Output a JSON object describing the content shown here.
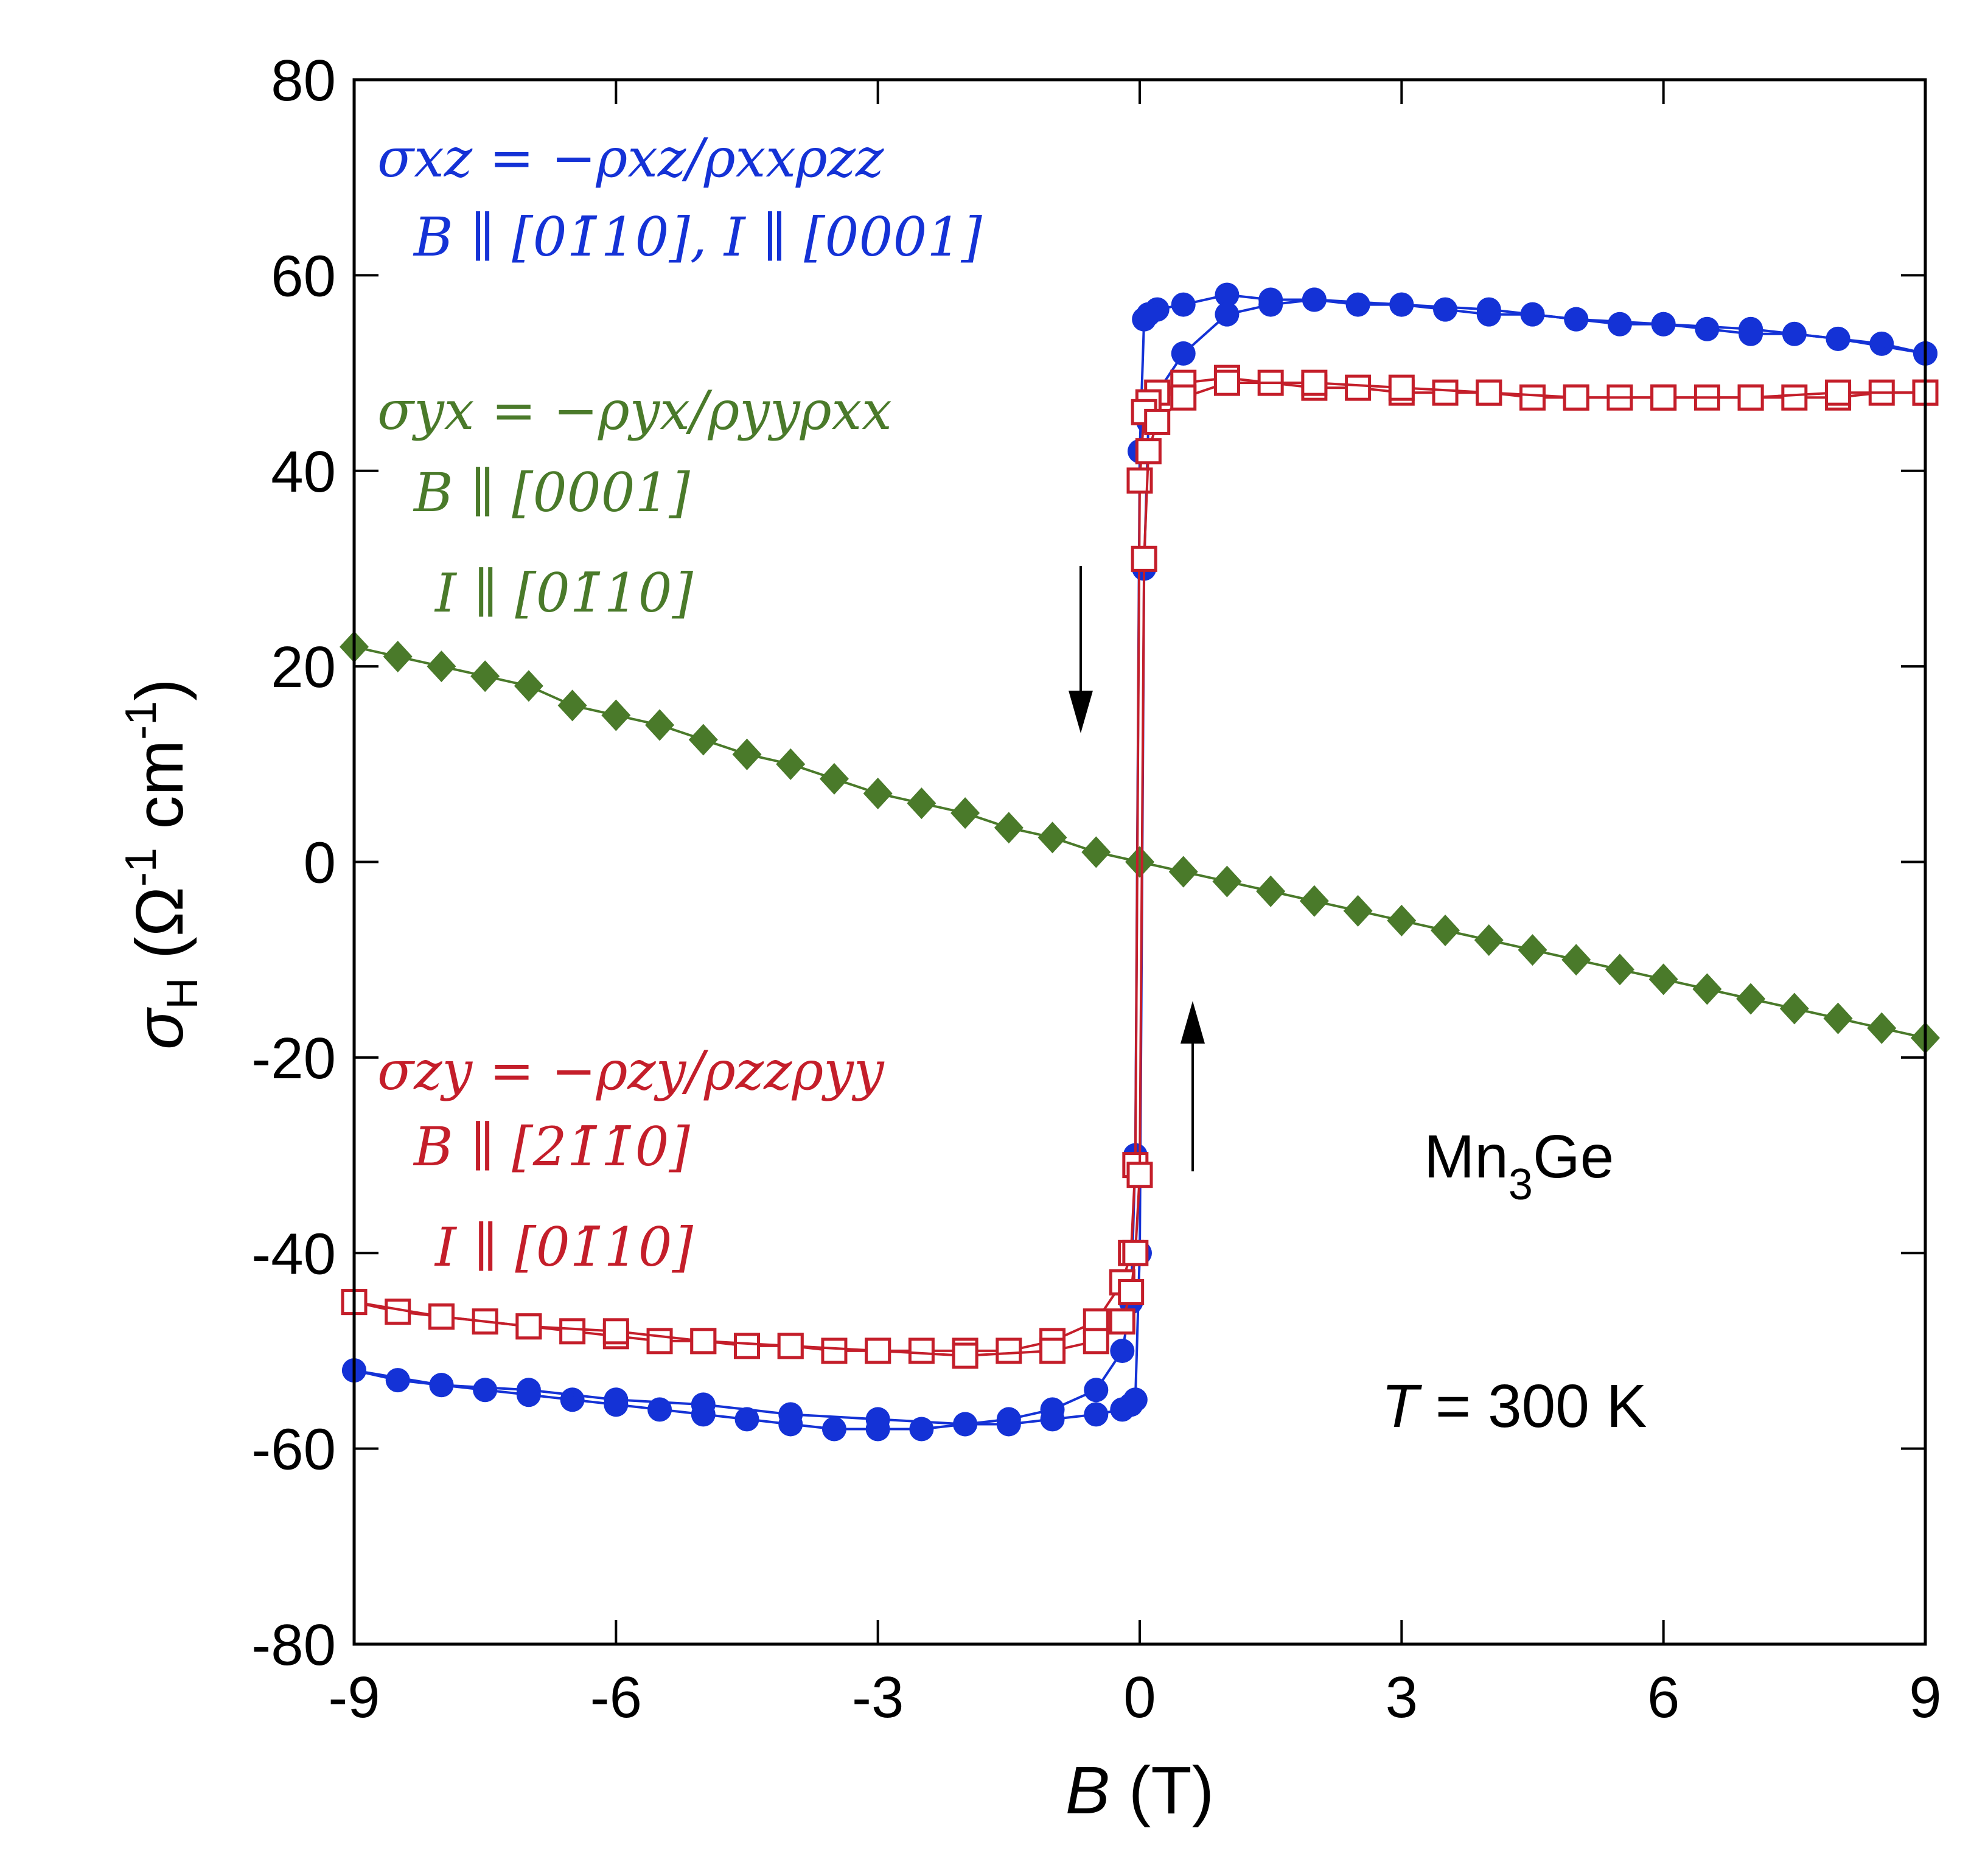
{
  "colors": {
    "blue": "#1432d6",
    "red": "#c41e2a",
    "green": "#4a7a2a",
    "axis": "#000000"
  },
  "chart_data": {
    "type": "scatter",
    "xlabel": "B (T)",
    "ylabel": "σH (Ω-1 cm-1)",
    "xlim": [
      -9,
      9
    ],
    "ylim": [
      -80,
      80
    ],
    "x_ticks": [
      -9,
      -6,
      -3,
      0,
      3,
      6,
      9
    ],
    "y_ticks": [
      -80,
      -60,
      -40,
      -20,
      0,
      20,
      40,
      60,
      80
    ],
    "grid": false,
    "series": [
      {
        "name": "σxz = −ρxz/ρxxρzz  B ∥ [01̄10], I ∥ [0001]",
        "marker": "filled-circle",
        "color": "blue",
        "sweep_down_x": [
          9,
          8.5,
          8,
          7.5,
          7,
          6.5,
          6,
          5.5,
          5,
          4.5,
          4,
          3.5,
          3,
          2.5,
          2,
          1.5,
          1,
          0.5,
          0.2,
          0.1,
          0.05,
          0,
          -0.05,
          -0.1,
          -0.2,
          -0.5,
          -1,
          -1.5,
          -2,
          -2.5,
          -3,
          -3.5,
          -4,
          -4.5,
          -5,
          -5.5,
          -6,
          -6.5,
          -7,
          -7.5,
          -8,
          -8.5,
          -9
        ],
        "sweep_down_y": [
          52,
          53,
          53.5,
          54,
          54,
          54.5,
          55,
          55,
          55.5,
          56,
          56,
          56.5,
          57,
          57,
          57.5,
          57.5,
          58,
          57,
          56.5,
          56,
          55.5,
          42,
          -30,
          -45,
          -50,
          -54,
          -56,
          -57,
          -57.5,
          -58,
          -58,
          -58,
          -57.5,
          -57,
          -56.5,
          -56,
          -55.5,
          -55,
          -54.5,
          -54,
          -53.5,
          -53,
          -52
        ],
        "sweep_up_x": [
          -9,
          -8,
          -7,
          -6,
          -5,
          -4,
          -3,
          -2,
          -1.5,
          -1,
          -0.5,
          -0.2,
          -0.1,
          -0.05,
          0,
          0.05,
          0.1,
          0.2,
          0.5,
          1,
          1.5,
          2,
          3,
          4,
          5,
          6,
          7,
          8,
          9
        ],
        "sweep_up_y": [
          -52,
          -53.5,
          -54,
          -55,
          -55.5,
          -56.5,
          -57,
          -57.5,
          -57.5,
          -57,
          -56.5,
          -56,
          -55.5,
          -55,
          -40,
          30,
          45,
          48,
          52,
          56,
          57,
          57.5,
          57,
          56.5,
          55.5,
          55,
          54.5,
          53.5,
          52
        ]
      },
      {
        "name": "σyx = −ρyx/ρyyρxx  B ∥ [0001]  I ∥ [01̄10]",
        "marker": "filled-diamond",
        "color": "green",
        "x": [
          -9,
          -8.5,
          -8,
          -7.5,
          -7,
          -6.5,
          -6,
          -5.5,
          -5,
          -4.5,
          -4,
          -3.5,
          -3,
          -2.5,
          -2,
          -1.5,
          -1,
          -0.5,
          0,
          0.5,
          1,
          1.5,
          2,
          2.5,
          3,
          3.5,
          4,
          4.5,
          5,
          5.5,
          6,
          6.5,
          7,
          7.5,
          8,
          8.5,
          9
        ],
        "y": [
          22,
          21,
          20,
          19,
          18,
          16,
          15,
          14,
          12.5,
          11,
          10,
          8.5,
          7,
          6,
          5,
          3.5,
          2.5,
          1,
          0,
          -1,
          -2,
          -3,
          -4,
          -5,
          -6,
          -7,
          -8,
          -9,
          -10,
          -11,
          -12,
          -13,
          -14,
          -15,
          -16,
          -17,
          -18
        ]
      },
      {
        "name": "σzy = −ρzy/ρzzρyy  B ∥ [21̄1̄0]  I ∥ [01̄10]",
        "marker": "open-square",
        "color": "red",
        "sweep_down_x": [
          9,
          8.5,
          8,
          7.5,
          7,
          6.5,
          6,
          5.5,
          5,
          4.5,
          4,
          3.5,
          3,
          2.5,
          2,
          1.5,
          1,
          0.5,
          0.2,
          0.1,
          0.05,
          0,
          -0.05,
          -0.1,
          -0.2,
          -0.5,
          -1,
          -1.5,
          -2,
          -2.5,
          -3,
          -3.5,
          -4,
          -4.5,
          -5,
          -5.5,
          -6,
          -6.5,
          -7,
          -7.5,
          -8,
          -8.5,
          -9
        ],
        "sweep_down_y": [
          48,
          48,
          47.5,
          47.5,
          47.5,
          47.5,
          47.5,
          47.5,
          47.5,
          47.5,
          48,
          48,
          48,
          48.5,
          48.5,
          49,
          49.5,
          49,
          48,
          47,
          46,
          39,
          -31,
          -40,
          -43,
          -47,
          -49,
          -50,
          -50,
          -50,
          -50,
          -50,
          -49.5,
          -49.5,
          -49,
          -49,
          -48.5,
          -48,
          -47.5,
          -47,
          -46.5,
          -46,
          -45
        ],
        "sweep_up_x": [
          -9,
          -8,
          -7,
          -6,
          -5,
          -4,
          -3,
          -2,
          -1,
          -0.5,
          -0.2,
          -0.1,
          -0.05,
          0,
          0.05,
          0.1,
          0.2,
          0.5,
          1,
          2,
          3,
          4,
          5,
          6,
          7,
          8,
          9
        ],
        "sweep_up_y": [
          -45,
          -46.5,
          -47.5,
          -48,
          -49,
          -49.5,
          -50,
          -50.5,
          -50,
          -49,
          -47,
          -44,
          -40,
          -32,
          31,
          42,
          45,
          47.5,
          49,
          49,
          48.5,
          48,
          47.5,
          47.5,
          47.5,
          48,
          48
        ]
      }
    ],
    "annotations": {
      "material_main": "Mn",
      "material_sub": "3",
      "material_tail": "Ge",
      "temp_var": "T",
      "temp_rest": " = 300 K"
    }
  },
  "labels": {
    "blue_eq": "σxz = −ρxz/ρxxρzz",
    "blue_cond_1": "B ∥ [01̄10], I ∥ [0001]",
    "green_eq": "σyx = −ρyx/ρyyρxx",
    "green_cond_1": "B ∥ [0001]",
    "green_cond_2": "I ∥ [01̄10]",
    "red_eq": "σzy = −ρzy/ρzzρyy",
    "red_cond_1": "B ∥ [21̄1̄0]",
    "red_cond_2": "I ∥ [01̄10]",
    "xlabel_var": "B",
    "xlabel_unit": " (T)",
    "ylabel_sigma": "σ",
    "ylabel_sub": "H",
    "ylabel_unit_a": " (Ω",
    "ylabel_sup1": "-1",
    "ylabel_unit_b": " cm",
    "ylabel_sup2": "-1",
    "ylabel_close": ")"
  }
}
